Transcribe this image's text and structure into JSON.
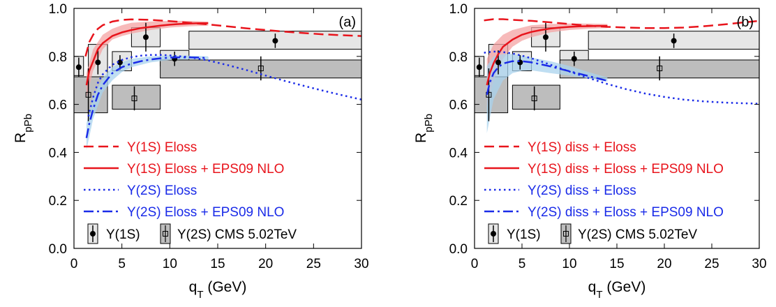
{
  "figure": {
    "panels": [
      "(a)",
      "(b)"
    ]
  },
  "chart_data": [
    {
      "type": "line",
      "panel_label": "(a)",
      "xlabel": "q",
      "xlabel_sub": "T",
      "xlabel_unit": " (GeV)",
      "ylabel": "R",
      "ylabel_sub": "pPb",
      "xlim": [
        0,
        30
      ],
      "ylim": [
        0.0,
        1.0
      ],
      "xticks": [
        0,
        5,
        10,
        15,
        20,
        25,
        30
      ],
      "xtick_labels": [
        "0",
        "5",
        "10",
        "15",
        "20",
        "25",
        "30"
      ],
      "yticks": [
        0.0,
        0.2,
        0.4,
        0.6,
        0.8,
        1.0
      ],
      "ytick_labels": [
        "0.0",
        "0.2",
        "0.4",
        "0.6",
        "0.8",
        "1.0"
      ],
      "grid": false,
      "legend": [
        {
          "label": "Y(1S) Eloss",
          "color": "#e8141c",
          "style": "dashed"
        },
        {
          "label": "Y(1S) Eloss + EPS09 NLO",
          "color": "#e8141c",
          "style": "solid"
        },
        {
          "label": "Y(2S) Eloss",
          "color": "#1a2be8",
          "style": "dotted"
        },
        {
          "label": "Y(2S) Eloss + EPS09 NLO",
          "color": "#1a2be8",
          "style": "dashdot"
        }
      ],
      "data_legend": {
        "y1s_label": "Y(1S)",
        "y2s_label": "Y(2S) CMS 5.02TeV"
      },
      "series": [
        {
          "name": "Y(1S) Eloss",
          "color": "#e8141c",
          "style": "dashed",
          "x": [
            1.2,
            1.6,
            2,
            2.5,
            3,
            4,
            5,
            6,
            8,
            10,
            12,
            14,
            16,
            18,
            20,
            22,
            24,
            26,
            28,
            30
          ],
          "y": [
            0.8,
            0.86,
            0.89,
            0.915,
            0.93,
            0.945,
            0.952,
            0.954,
            0.952,
            0.947,
            0.94,
            0.933,
            0.925,
            0.917,
            0.91,
            0.903,
            0.897,
            0.892,
            0.888,
            0.885
          ]
        },
        {
          "name": "Y(1S) Eloss + EPS09 NLO",
          "color": "#e8141c",
          "style": "solid",
          "x": [
            1.3,
            1.6,
            2,
            2.5,
            3,
            4,
            5,
            6,
            7,
            8,
            9,
            10,
            11,
            12,
            13,
            14
          ],
          "y": [
            0.68,
            0.74,
            0.78,
            0.83,
            0.855,
            0.885,
            0.9,
            0.91,
            0.918,
            0.923,
            0.928,
            0.932,
            0.935,
            0.937,
            0.938,
            0.938
          ]
        },
        {
          "name": "Y(2S) Eloss",
          "color": "#1a2be8",
          "style": "dotted",
          "x": [
            1.5,
            2,
            2.5,
            3,
            4,
            5,
            6,
            7,
            8,
            9,
            10,
            12,
            14,
            16,
            18,
            20,
            22,
            24,
            26,
            28,
            30
          ],
          "y": [
            0.55,
            0.63,
            0.69,
            0.725,
            0.765,
            0.785,
            0.797,
            0.803,
            0.806,
            0.806,
            0.804,
            0.797,
            0.783,
            0.764,
            0.743,
            0.72,
            0.698,
            0.677,
            0.657,
            0.638,
            0.62
          ]
        },
        {
          "name": "Y(2S) Eloss + EPS09 NLO",
          "color": "#1a2be8",
          "style": "dashdot",
          "x": [
            1.3,
            1.6,
            2,
            2.5,
            3,
            4,
            5,
            6,
            7,
            8,
            9,
            10,
            11,
            12,
            13,
            14
          ],
          "y": [
            0.46,
            0.52,
            0.58,
            0.64,
            0.68,
            0.73,
            0.755,
            0.77,
            0.78,
            0.787,
            0.792,
            0.795,
            0.796,
            0.796,
            0.795,
            0.793
          ]
        }
      ],
      "bands": [
        {
          "color": "#f4a3a3",
          "x": [
            1.3,
            2,
            3,
            4,
            5,
            6,
            8,
            10,
            12,
            14
          ],
          "y_low": [
            0.63,
            0.74,
            0.83,
            0.87,
            0.885,
            0.895,
            0.91,
            0.92,
            0.925,
            0.928
          ],
          "y_high": [
            0.73,
            0.83,
            0.89,
            0.915,
            0.93,
            0.94,
            0.945,
            0.948,
            0.948,
            0.945
          ]
        },
        {
          "color": "#a9d3ee",
          "x": [
            1.3,
            2,
            3,
            4,
            5,
            6,
            8,
            10,
            12,
            14
          ],
          "y_low": [
            0.41,
            0.54,
            0.65,
            0.7,
            0.735,
            0.755,
            0.775,
            0.785,
            0.788,
            0.788
          ],
          "y_high": [
            0.52,
            0.63,
            0.71,
            0.755,
            0.775,
            0.79,
            0.8,
            0.805,
            0.803,
            0.8
          ]
        }
      ],
      "data_points": [
        {
          "series": "Y(1S)",
          "marker": "filled-circle",
          "x": 0.5,
          "y": 0.755,
          "yerr": 0.04,
          "box_x": [
            0,
            1
          ],
          "box_y": [
            0.72,
            0.8
          ]
        },
        {
          "series": "Y(1S)",
          "marker": "filled-circle",
          "x": 2.5,
          "y": 0.775,
          "yerr": 0.05,
          "box_x": [
            1.5,
            3.5
          ],
          "box_y": [
            0.71,
            0.85
          ]
        },
        {
          "series": "Y(1S)",
          "marker": "filled-circle",
          "x": 4.8,
          "y": 0.775,
          "yerr": 0.03,
          "box_x": [
            4,
            6
          ],
          "box_y": [
            0.74,
            0.82
          ]
        },
        {
          "series": "Y(1S)",
          "marker": "filled-circle",
          "x": 7.5,
          "y": 0.88,
          "yerr": 0.06,
          "box_x": [
            6,
            9
          ],
          "box_y": [
            0.84,
            0.92
          ]
        },
        {
          "series": "Y(1S)",
          "marker": "filled-circle",
          "x": 10.5,
          "y": 0.79,
          "yerr": 0.03,
          "box_x": [
            9,
            12
          ],
          "box_y": [
            0.76,
            0.825
          ]
        },
        {
          "series": "Y(1S)",
          "marker": "filled-circle",
          "x": 21,
          "y": 0.865,
          "yerr": 0.03,
          "box_x": [
            12,
            30
          ],
          "box_y": [
            0.83,
            0.905
          ]
        },
        {
          "series": "Y(2S) CMS 5.02TeV",
          "marker": "open-square",
          "x": 1.5,
          "y": 0.64,
          "yerr": 0.11,
          "box_x": [
            0,
            3.5
          ],
          "box_y": [
            0.565,
            0.715
          ]
        },
        {
          "series": "Y(2S) CMS 5.02TeV",
          "marker": "open-square",
          "x": 6.3,
          "y": 0.625,
          "yerr": 0.05,
          "box_x": [
            4,
            9
          ],
          "box_y": [
            0.58,
            0.68
          ]
        },
        {
          "series": "Y(2S) CMS 5.02TeV",
          "marker": "open-square",
          "x": 19.5,
          "y": 0.75,
          "yerr": 0.05,
          "box_x": [
            9,
            30
          ],
          "box_y": [
            0.71,
            0.785
          ]
        }
      ]
    },
    {
      "type": "line",
      "panel_label": "(b)",
      "xlabel": "q",
      "xlabel_sub": "T",
      "xlabel_unit": " (GeV)",
      "ylabel": "R",
      "ylabel_sub": "pPb",
      "xlim": [
        0,
        30
      ],
      "ylim": [
        0.0,
        1.0
      ],
      "xticks": [
        0,
        5,
        10,
        15,
        20,
        25,
        30
      ],
      "xtick_labels": [
        "0",
        "5",
        "10",
        "15",
        "20",
        "25",
        "30"
      ],
      "yticks": [
        0.0,
        0.2,
        0.4,
        0.6,
        0.8,
        1.0
      ],
      "ytick_labels": [
        "0.0",
        "0.2",
        "0.4",
        "0.6",
        "0.8",
        "1.0"
      ],
      "grid": false,
      "legend": [
        {
          "label": "Y(1S) diss + Eloss",
          "color": "#e8141c",
          "style": "dashed"
        },
        {
          "label": "Y(1S) diss + Eloss + EPS09 NLO",
          "color": "#e8141c",
          "style": "solid"
        },
        {
          "label": "Y(2S) diss + Eloss",
          "color": "#1a2be8",
          "style": "dotted"
        },
        {
          "label": "Y(2S) diss + Eloss + EPS09 NLO",
          "color": "#1a2be8",
          "style": "dashdot"
        }
      ],
      "data_legend": {
        "y1s_label": "Y(1S)",
        "y2s_label": "Y(2S) CMS 5.02TeV"
      },
      "series": [
        {
          "name": "Y(1S) diss + Eloss",
          "color": "#e8141c",
          "style": "dashed",
          "x": [
            1,
            2,
            3,
            4,
            6,
            8,
            10,
            12,
            14,
            16,
            18,
            20,
            22,
            24,
            26,
            28,
            30
          ],
          "y": [
            0.95,
            0.955,
            0.955,
            0.952,
            0.948,
            0.942,
            0.935,
            0.928,
            0.923,
            0.92,
            0.918,
            0.918,
            0.92,
            0.925,
            0.932,
            0.94,
            0.948
          ]
        },
        {
          "name": "Y(1S) diss + Eloss + EPS09 NLO",
          "color": "#e8141c",
          "style": "solid",
          "x": [
            1.3,
            1.6,
            2,
            2.5,
            3,
            4,
            5,
            6,
            7,
            8,
            9,
            10,
            11,
            12,
            13,
            14
          ],
          "y": [
            0.68,
            0.73,
            0.77,
            0.81,
            0.84,
            0.87,
            0.89,
            0.902,
            0.91,
            0.916,
            0.92,
            0.923,
            0.925,
            0.926,
            0.927,
            0.927
          ]
        },
        {
          "name": "Y(2S) diss + Eloss",
          "color": "#1a2be8",
          "style": "dotted",
          "x": [
            1,
            2,
            3,
            4,
            5,
            6,
            7,
            8,
            9,
            10,
            12,
            14,
            16,
            18,
            20,
            22,
            24,
            26,
            28,
            30
          ],
          "y": [
            0.815,
            0.82,
            0.818,
            0.812,
            0.803,
            0.792,
            0.779,
            0.765,
            0.751,
            0.737,
            0.71,
            0.685,
            0.663,
            0.645,
            0.631,
            0.62,
            0.613,
            0.608,
            0.605,
            0.603
          ]
        },
        {
          "name": "Y(2S) diss + Eloss + EPS09 NLO",
          "color": "#1a2be8",
          "style": "dashdot",
          "x": [
            1.3,
            1.6,
            2,
            2.5,
            3,
            4,
            5,
            6,
            7,
            8,
            9,
            10,
            11,
            12,
            13,
            14
          ],
          "y": [
            0.64,
            0.69,
            0.73,
            0.755,
            0.77,
            0.78,
            0.78,
            0.775,
            0.767,
            0.758,
            0.748,
            0.738,
            0.728,
            0.718,
            0.708,
            0.698
          ]
        }
      ],
      "bands": [
        {
          "color": "#f4a3a3",
          "x": [
            1.3,
            2,
            3,
            4,
            5,
            6,
            8,
            10,
            12,
            14
          ],
          "y_low": [
            0.59,
            0.7,
            0.79,
            0.84,
            0.865,
            0.88,
            0.9,
            0.91,
            0.915,
            0.918
          ],
          "y_high": [
            0.79,
            0.85,
            0.89,
            0.91,
            0.92,
            0.93,
            0.935,
            0.937,
            0.937,
            0.935
          ]
        },
        {
          "color": "#a9d3ee",
          "x": [
            1.3,
            2,
            3,
            4,
            5,
            6,
            8,
            10,
            12,
            14
          ],
          "y_low": [
            0.48,
            0.62,
            0.7,
            0.73,
            0.74,
            0.742,
            0.73,
            0.72,
            0.708,
            0.695
          ],
          "y_high": [
            0.76,
            0.8,
            0.81,
            0.81,
            0.803,
            0.795,
            0.78,
            0.76,
            0.735,
            0.712
          ]
        }
      ],
      "data_points": [
        {
          "series": "Y(1S)",
          "marker": "filled-circle",
          "x": 0.5,
          "y": 0.755,
          "yerr": 0.04,
          "box_x": [
            0,
            1
          ],
          "box_y": [
            0.72,
            0.8
          ]
        },
        {
          "series": "Y(1S)",
          "marker": "filled-circle",
          "x": 2.5,
          "y": 0.775,
          "yerr": 0.05,
          "box_x": [
            1.5,
            3.5
          ],
          "box_y": [
            0.71,
            0.85
          ]
        },
        {
          "series": "Y(1S)",
          "marker": "filled-circle",
          "x": 4.8,
          "y": 0.775,
          "yerr": 0.03,
          "box_x": [
            4,
            6
          ],
          "box_y": [
            0.74,
            0.82
          ]
        },
        {
          "series": "Y(1S)",
          "marker": "filled-circle",
          "x": 7.5,
          "y": 0.88,
          "yerr": 0.06,
          "box_x": [
            6,
            9
          ],
          "box_y": [
            0.84,
            0.92
          ]
        },
        {
          "series": "Y(1S)",
          "marker": "filled-circle",
          "x": 10.5,
          "y": 0.79,
          "yerr": 0.03,
          "box_x": [
            9,
            12
          ],
          "box_y": [
            0.76,
            0.825
          ]
        },
        {
          "series": "Y(1S)",
          "marker": "filled-circle",
          "x": 21,
          "y": 0.865,
          "yerr": 0.03,
          "box_x": [
            12,
            30
          ],
          "box_y": [
            0.83,
            0.905
          ]
        },
        {
          "series": "Y(2S) CMS 5.02TeV",
          "marker": "open-square",
          "x": 1.5,
          "y": 0.64,
          "yerr": 0.11,
          "box_x": [
            0,
            3.5
          ],
          "box_y": [
            0.565,
            0.715
          ]
        },
        {
          "series": "Y(2S) CMS 5.02TeV",
          "marker": "open-square",
          "x": 6.3,
          "y": 0.625,
          "yerr": 0.05,
          "box_x": [
            4,
            9
          ],
          "box_y": [
            0.58,
            0.68
          ]
        },
        {
          "series": "Y(2S) CMS 5.02TeV",
          "marker": "open-square",
          "x": 19.5,
          "y": 0.75,
          "yerr": 0.05,
          "box_x": [
            9,
            30
          ],
          "box_y": [
            0.71,
            0.785
          ]
        }
      ]
    }
  ]
}
